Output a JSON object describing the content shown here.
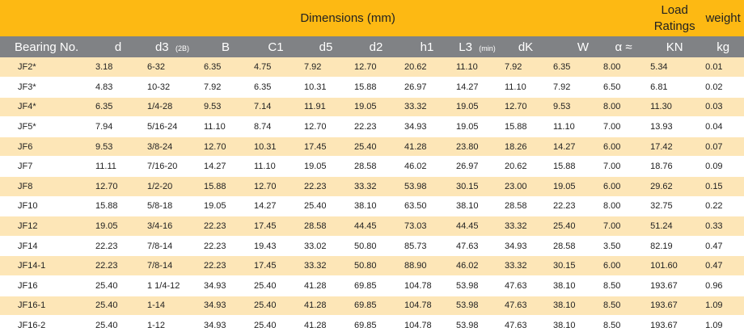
{
  "title_row": {
    "dimensions": "Dimensions (mm)",
    "load_line1": "Load",
    "load_line2": "Ratings",
    "weight": "weight"
  },
  "headers": [
    {
      "main": "Bearing No.",
      "sub": ""
    },
    {
      "main": "d",
      "sub": ""
    },
    {
      "main": "d3",
      "sub": "(2B)"
    },
    {
      "main": "B",
      "sub": ""
    },
    {
      "main": "C1",
      "sub": ""
    },
    {
      "main": "d5",
      "sub": ""
    },
    {
      "main": "d2",
      "sub": ""
    },
    {
      "main": "h1",
      "sub": ""
    },
    {
      "main": "L3",
      "sub": "(min)"
    },
    {
      "main": "dK",
      "sub": ""
    },
    {
      "main": "W",
      "sub": ""
    },
    {
      "main": "α ≈",
      "sub": ""
    },
    {
      "main": "KN",
      "sub": ""
    },
    {
      "main": "kg",
      "sub": ""
    }
  ],
  "rows": [
    [
      "JF2*",
      "3.18",
      "6-32",
      "6.35",
      "4.75",
      "7.92",
      "12.70",
      "20.62",
      "11.10",
      "7.92",
      "6.35",
      "8.00",
      "5.34",
      "0.01"
    ],
    [
      "JF3*",
      "4.83",
      "10-32",
      "7.92",
      "6.35",
      "10.31",
      "15.88",
      "26.97",
      "14.27",
      "11.10",
      "7.92",
      "6.50",
      "6.81",
      "0.02"
    ],
    [
      "JF4*",
      "6.35",
      "1/4-28",
      "9.53",
      "7.14",
      "11.91",
      "19.05",
      "33.32",
      "19.05",
      "12.70",
      "9.53",
      "8.00",
      "11.30",
      "0.03"
    ],
    [
      "JF5*",
      "7.94",
      "5/16-24",
      "11.10",
      "8.74",
      "12.70",
      "22.23",
      "34.93",
      "19.05",
      "15.88",
      "11.10",
      "7.00",
      "13.93",
      "0.04"
    ],
    [
      "JF6",
      "9.53",
      "3/8-24",
      "12.70",
      "10.31",
      "17.45",
      "25.40",
      "41.28",
      "23.80",
      "18.26",
      "14.27",
      "6.00",
      "17.42",
      "0.07"
    ],
    [
      "JF7",
      "11.11",
      "7/16-20",
      "14.27",
      "11.10",
      "19.05",
      "28.58",
      "46.02",
      "26.97",
      "20.62",
      "15.88",
      "7.00",
      "18.76",
      "0.09"
    ],
    [
      "JF8",
      "12.70",
      "1/2-20",
      "15.88",
      "12.70",
      "22.23",
      "33.32",
      "53.98",
      "30.15",
      "23.00",
      "19.05",
      "6.00",
      "29.62",
      "0.15"
    ],
    [
      "JF10",
      "15.88",
      "5/8-18",
      "19.05",
      "14.27",
      "25.40",
      "38.10",
      "63.50",
      "38.10",
      "28.58",
      "22.23",
      "8.00",
      "32.75",
      "0.22"
    ],
    [
      "JF12",
      "19.05",
      "3/4-16",
      "22.23",
      "17.45",
      "28.58",
      "44.45",
      "73.03",
      "44.45",
      "33.32",
      "25.40",
      "7.00",
      "51.24",
      "0.33"
    ],
    [
      "JF14",
      "22.23",
      "7/8-14",
      "22.23",
      "19.43",
      "33.02",
      "50.80",
      "85.73",
      "47.63",
      "34.93",
      "28.58",
      "3.50",
      "82.19",
      "0.47"
    ],
    [
      "JF14-1",
      "22.23",
      "7/8-14",
      "22.23",
      "17.45",
      "33.32",
      "50.80",
      "88.90",
      "46.02",
      "33.32",
      "30.15",
      "6.00",
      "101.60",
      "0.47"
    ],
    [
      "JF16",
      "25.40",
      "1 1/4-12",
      "34.93",
      "25.40",
      "41.28",
      "69.85",
      "104.78",
      "53.98",
      "47.63",
      "38.10",
      "8.50",
      "193.67",
      "0.96"
    ],
    [
      "JF16-1",
      "25.40",
      "1-14",
      "34.93",
      "25.40",
      "41.28",
      "69.85",
      "104.78",
      "53.98",
      "47.63",
      "38.10",
      "8.50",
      "193.67",
      "1.09"
    ],
    [
      "JF16-2",
      "25.40",
      "1-12",
      "34.93",
      "25.40",
      "41.28",
      "69.85",
      "104.78",
      "53.98",
      "47.63",
      "38.10",
      "8.50",
      "193.67",
      "1.09"
    ]
  ],
  "colors": {
    "title_bg": "#FDB913",
    "header_bg": "#808285",
    "stripe_bg": "#fde6b7",
    "row_bg": "#ffffff"
  }
}
